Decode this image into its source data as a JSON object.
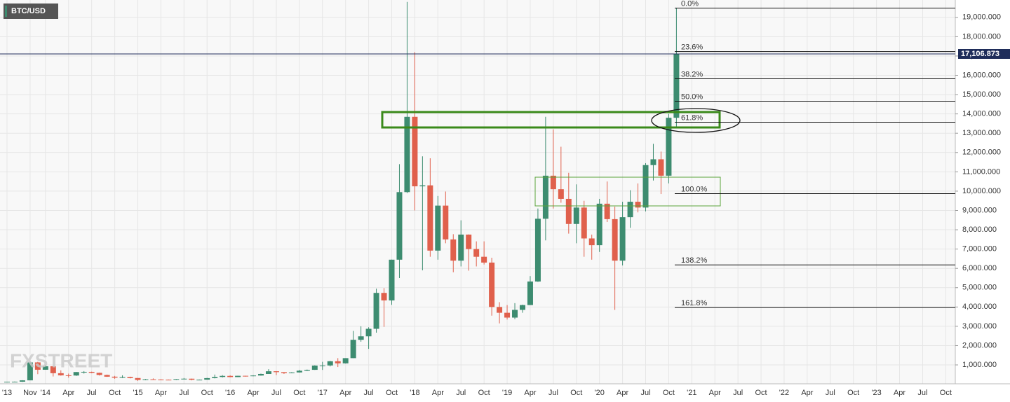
{
  "chart_data": {
    "type": "candlestick",
    "title": "BTC/USD",
    "watermark": "FXSTREET",
    "categories": [
      "'13",
      null,
      null,
      "Nov",
      null,
      "'14",
      null,
      null,
      "Apr",
      null,
      null,
      "Jul",
      null,
      null,
      "Oct",
      null,
      null,
      "'15",
      null,
      null,
      "Apr",
      null,
      null,
      "Jul",
      null,
      null,
      "Oct",
      null,
      null,
      "'16",
      null,
      null,
      "Apr",
      null,
      null,
      "Jul",
      null,
      null,
      "Oct",
      null,
      null,
      "'17",
      null,
      null,
      "Apr",
      null,
      null,
      "Jul",
      null,
      null,
      "Oct",
      null,
      null,
      "'18",
      null,
      null,
      "Apr",
      null,
      null,
      "Jul",
      null,
      null,
      "Oct",
      null,
      null,
      "'19",
      null,
      null,
      "Apr",
      null,
      null,
      "Jul",
      null,
      null,
      "Oct",
      null,
      null,
      "'20",
      null,
      null,
      "Apr",
      null,
      null,
      "Jul",
      null,
      null,
      "Oct",
      null,
      null,
      "'21",
      null,
      null,
      "Apr",
      null,
      null,
      "Jul",
      null,
      null,
      "Oct",
      null,
      null,
      "'22",
      null,
      null,
      "Apr",
      null,
      null,
      "Jul",
      null,
      null,
      "Oct",
      null,
      null,
      "'23",
      null,
      null,
      "Apr",
      null,
      null,
      "Jul",
      null,
      null,
      "Oct"
    ],
    "open": [
      100,
      130,
      130,
      200,
      1130,
      750,
      930,
      570,
      460,
      450,
      630,
      640,
      590,
      480,
      390,
      340,
      380,
      320,
      220,
      255,
      245,
      235,
      230,
      265,
      285,
      230,
      235,
      315,
      375,
      430,
      370,
      435,
      415,
      450,
      530,
      670,
      625,
      575,
      610,
      700,
      745,
      965,
      970,
      1190,
      1080,
      1350,
      2300,
      2480,
      2870,
      4730,
      4340,
      6450,
      9950,
      13850,
      10250,
      10300,
      6920,
      9250,
      7500,
      6400,
      7750,
      7000,
      6600,
      6300,
      4000,
      3700,
      3450,
      3850,
      4100,
      5320,
      8570,
      10800,
      10100,
      9600,
      8300,
      9150,
      7550,
      7200,
      9350,
      8550,
      6400,
      8650,
      9450,
      9150,
      11350,
      11650,
      10800,
      13800,
      null,
      null,
      null,
      null,
      null,
      null,
      null,
      null,
      null,
      null,
      null,
      null,
      null,
      null,
      null,
      null,
      null,
      null,
      null,
      null,
      null,
      null,
      null,
      null,
      null,
      null,
      null,
      null,
      null,
      null,
      null,
      null,
      null,
      null,
      null
    ],
    "high": [
      130,
      140,
      210,
      1160,
      1160,
      1000,
      940,
      720,
      550,
      630,
      680,
      650,
      600,
      500,
      430,
      460,
      390,
      320,
      270,
      300,
      260,
      245,
      270,
      320,
      290,
      245,
      330,
      500,
      470,
      460,
      440,
      440,
      465,
      550,
      780,
      680,
      630,
      625,
      740,
      760,
      980,
      1160,
      1210,
      1350,
      1350,
      2760,
      3000,
      2950,
      4950,
      4980,
      6450,
      11400,
      19800,
      17200,
      11800,
      11700,
      9750,
      9980,
      7770,
      8490,
      7760,
      7400,
      7400,
      6550,
      4250,
      4100,
      4200,
      4120,
      5600,
      9100,
      13850,
      13200,
      12300,
      10950,
      10350,
      9500,
      7750,
      9600,
      10500,
      9200,
      9450,
      10050,
      10400,
      11450,
      12450,
      12050,
      14000,
      19500,
      null,
      null,
      null,
      null,
      null,
      null,
      null,
      null,
      null,
      null,
      null,
      null,
      null,
      null,
      null,
      null,
      null,
      null,
      null,
      null,
      null,
      null,
      null,
      null,
      null,
      null,
      null,
      null,
      null,
      null,
      null,
      null,
      null,
      null,
      null
    ],
    "low": [
      100,
      120,
      120,
      200,
      520,
      750,
      400,
      440,
      340,
      430,
      550,
      570,
      450,
      380,
      280,
      320,
      300,
      170,
      210,
      240,
      215,
      225,
      220,
      255,
      200,
      225,
      235,
      300,
      350,
      360,
      370,
      395,
      410,
      440,
      530,
      470,
      530,
      570,
      600,
      680,
      740,
      740,
      920,
      890,
      1070,
      1350,
      2200,
      1830,
      2670,
      2970,
      4110,
      5500,
      9900,
      9000,
      5900,
      6600,
      6450,
      7300,
      5800,
      6100,
      5880,
      6100,
      6200,
      3550,
      3150,
      3350,
      3370,
      3700,
      4100,
      5300,
      7450,
      9100,
      9400,
      7800,
      7300,
      6600,
      6450,
      6850,
      8400,
      3850,
      6150,
      8100,
      8900,
      8950,
      10550,
      9850,
      10400,
      13250,
      null,
      null,
      null,
      null,
      null,
      null,
      null,
      null,
      null,
      null,
      null,
      null,
      null,
      null,
      null,
      null,
      null,
      null,
      null,
      null,
      null,
      null,
      null,
      null,
      null,
      null,
      null,
      null,
      null,
      null,
      null,
      null,
      null,
      null,
      null
    ],
    "close": [
      130,
      130,
      200,
      1130,
      750,
      930,
      570,
      460,
      450,
      630,
      640,
      590,
      480,
      390,
      340,
      380,
      320,
      220,
      255,
      245,
      235,
      230,
      265,
      285,
      230,
      235,
      315,
      375,
      430,
      370,
      435,
      415,
      450,
      530,
      670,
      625,
      575,
      610,
      700,
      745,
      965,
      970,
      1190,
      1080,
      1350,
      2300,
      2480,
      2870,
      4730,
      4340,
      6450,
      9950,
      13850,
      10250,
      10300,
      6920,
      9250,
      7500,
      6400,
      7750,
      7000,
      6600,
      6300,
      4000,
      3700,
      3450,
      3850,
      4100,
      5320,
      8570,
      10800,
      10100,
      9600,
      8300,
      9150,
      7550,
      7200,
      9350,
      8550,
      6400,
      8650,
      9450,
      9150,
      11350,
      11650,
      10800,
      13800,
      17106.873,
      null,
      null,
      null,
      null,
      null,
      null,
      null,
      null,
      null,
      null,
      null,
      null,
      null,
      null,
      null,
      null,
      null,
      null,
      null,
      null,
      null,
      null,
      null,
      null,
      null,
      null,
      null,
      null,
      null,
      null,
      null,
      null,
      null,
      null,
      null
    ],
    "up_color": "#3d8c70",
    "down_color": "#e0604c",
    "current_price": {
      "value": 17106.873,
      "label": "17,106.873"
    },
    "fibonacci": [
      {
        "label": "0.0%",
        "value": 19480
      },
      {
        "label": "23.6%",
        "value": 17230
      },
      {
        "label": "38.2%",
        "value": 15820
      },
      {
        "label": "50.0%",
        "value": 14660
      },
      {
        "label": "61.8%",
        "value": 13570
      },
      {
        "label": "100.0%",
        "value": 9870
      },
      {
        "label": "138.2%",
        "value": 6180
      },
      {
        "label": "161.8%",
        "value": 3970
      }
    ],
    "ylim": [
      0,
      19900
    ],
    "yticks": [
      {
        "value": 1000,
        "label": "1,000.000"
      },
      {
        "value": 2000,
        "label": "2,000.000"
      },
      {
        "value": 3000,
        "label": "3,000.000"
      },
      {
        "value": 4000,
        "label": "4,000.000"
      },
      {
        "value": 5000,
        "label": "5,000.000"
      },
      {
        "value": 6000,
        "label": "6,000.000"
      },
      {
        "value": 7000,
        "label": "7,000.000"
      },
      {
        "value": 8000,
        "label": "8,000.000"
      },
      {
        "value": 9000,
        "label": "9,000.000"
      },
      {
        "value": 10000,
        "label": "10,000.000"
      },
      {
        "value": 11000,
        "label": "11,000.000"
      },
      {
        "value": 12000,
        "label": "12,000.000"
      },
      {
        "value": 13000,
        "label": "13,000.000"
      },
      {
        "value": 14000,
        "label": "14,000.000"
      },
      {
        "value": 15000,
        "label": "15,000.000"
      },
      {
        "value": 16000,
        "label": "16,000.000"
      },
      {
        "value": 17000,
        "label": "17,000.000"
      },
      {
        "value": 18000,
        "label": "18,000.000"
      },
      {
        "value": 19000,
        "label": "19,000.000"
      }
    ],
    "grid": true
  }
}
